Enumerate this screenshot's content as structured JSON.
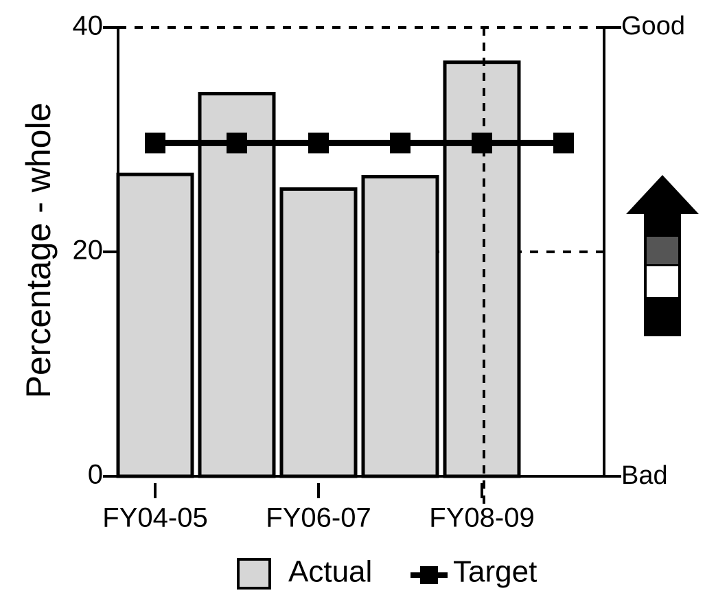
{
  "chart_data": {
    "type": "bar",
    "y_axis_label": "Percentage - whole",
    "categories": [
      "FY04-05",
      null,
      "FY06-07",
      null,
      "FY08-09",
      null
    ],
    "series": [
      {
        "name": "Actual",
        "type": "bar",
        "color": "#d6d6d6",
        "values": [
          26.9,
          34.1,
          25.6,
          26.7,
          36.9,
          null
        ]
      },
      {
        "name": "Target",
        "type": "line",
        "color": "#000000",
        "values": [
          29.7,
          29.7,
          29.7,
          29.7,
          29.7,
          29.7
        ]
      }
    ],
    "ylim": [
      0,
      40
    ],
    "yticks": [
      0,
      20,
      40
    ],
    "grid": true,
    "right_axis_labels": {
      "top": "Good",
      "bottom": "Bad"
    },
    "legend": "bottom"
  }
}
